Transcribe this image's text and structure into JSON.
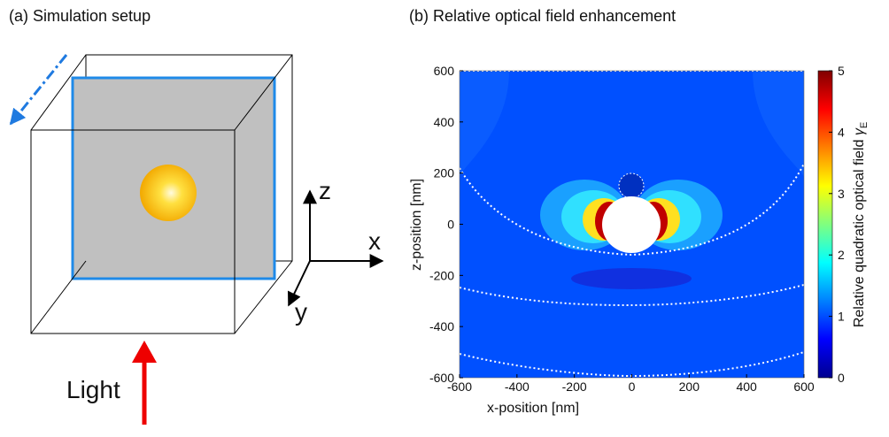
{
  "panel_a": {
    "title": "(a) Simulation setup",
    "axis_z": "z",
    "axis_x": "x",
    "axis_y": "y",
    "light_label": "Light"
  },
  "chart_data": {
    "type": "contour",
    "title": "(b) Relative optical field enhancement",
    "x_label": "x-position [nm]",
    "y_label": "z-position [nm]",
    "xlim": [
      -600,
      600
    ],
    "ylim": [
      -600,
      600
    ],
    "xticks": [
      -600,
      -400,
      -200,
      0,
      200,
      400,
      600
    ],
    "yticks": [
      -600,
      -400,
      -200,
      0,
      200,
      400,
      600
    ],
    "colorbar": {
      "label": "Relative quadratic optical field",
      "symbol": "γ",
      "symbol_sub": "E",
      "lim": [
        0,
        5
      ],
      "ticks": [
        0,
        1,
        2,
        3,
        4,
        5
      ]
    }
  }
}
